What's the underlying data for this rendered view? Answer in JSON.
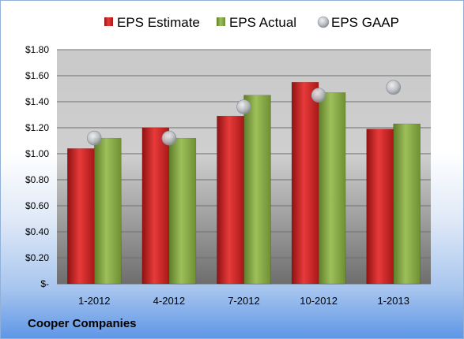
{
  "company_label": "Cooper Companies",
  "chart_data": {
    "type": "bar",
    "categories": [
      "1-2012",
      "4-2012",
      "7-2012",
      "10-2012",
      "1-2013"
    ],
    "series": [
      {
        "name": "EPS Estimate",
        "kind": "bar",
        "color": "#d42a2a",
        "values": [
          1.04,
          1.2,
          1.29,
          1.55,
          1.19
        ]
      },
      {
        "name": "EPS Actual",
        "kind": "bar",
        "color": "#8fb04a",
        "values": [
          1.12,
          1.12,
          1.45,
          1.47,
          1.23
        ]
      },
      {
        "name": "EPS GAAP",
        "kind": "marker",
        "color": "#b8bcc2",
        "values": [
          1.12,
          1.12,
          1.36,
          1.45,
          1.51
        ]
      }
    ],
    "ylim": [
      0,
      1.8
    ],
    "yticks": [
      0,
      0.2,
      0.4,
      0.6,
      0.8,
      1.0,
      1.2,
      1.4,
      1.6,
      1.8
    ],
    "ytick_labels": [
      "$-",
      "$0.20",
      "$0.40",
      "$0.60",
      "$0.80",
      "$1.00",
      "$1.20",
      "$1.40",
      "$1.60",
      "$1.80"
    ],
    "legend_position": "top",
    "grid": true
  }
}
